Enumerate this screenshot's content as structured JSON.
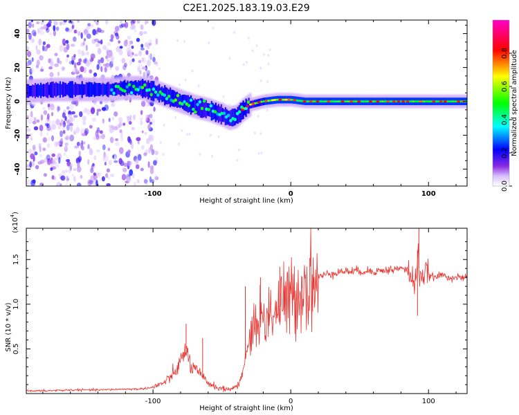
{
  "title": "C2E1.2025.183.19.03.E29",
  "chart_data": [
    {
      "type": "heatmap",
      "xlabel": "Height of straight line (km)",
      "ylabel": "Frequency (Hz)",
      "xlim": [
        -192,
        128
      ],
      "ylim": [
        -50,
        48
      ],
      "xticks": [
        -100,
        0,
        100
      ],
      "yticks": [
        -40,
        -20,
        0,
        20,
        40
      ],
      "colorbar": {
        "label": "Normalized spectral amplitude",
        "range": [
          0,
          1
        ],
        "ticks": [
          0.0,
          0.2,
          0.4,
          0.6,
          0.8
        ],
        "tick_labels": [
          "0.0",
          "0.2",
          "0.4",
          "0.6",
          "0.8"
        ],
        "colormap": [
          "#ffffff",
          "#7b00ff",
          "#0000ff",
          "#00ffff",
          "#00ff00",
          "#ffff00",
          "#ff0000",
          "#ff00ff"
        ]
      },
      "ridge_frequency": {
        "x": [
          -192,
          -170,
          -150,
          -130,
          -120,
          -110,
          -100,
          -90,
          -80,
          -70,
          -60,
          -50,
          -45,
          -40,
          -35,
          -30,
          -20,
          -10,
          0,
          10,
          30,
          60,
          90,
          100,
          128
        ],
        "y": [
          6,
          7,
          7,
          7,
          8,
          8,
          6,
          3,
          0,
          -3,
          -5,
          -8,
          -10,
          -9,
          -5,
          -2,
          0,
          1,
          1,
          0,
          0,
          0,
          0,
          0,
          0
        ]
      }
    },
    {
      "type": "line",
      "xlabel": "Height of straight line (km)",
      "ylabel": "SNR (10 * v/v)",
      "multiplier_label": "(x10",
      "multiplier_exponent": "4",
      "xlim": [
        -192,
        128
      ],
      "ylim": [
        0,
        1.85
      ],
      "xticks": [
        -100,
        0,
        100
      ],
      "yticks": [
        0.5,
        1.0,
        1.5
      ],
      "ytick_labels": [
        "0.5",
        "1.0",
        "1.5"
      ],
      "line_color": "#e8322e",
      "series": [
        {
          "x": [
            -192,
            -180,
            -160,
            -140,
            -120,
            -110,
            -100,
            -95,
            -90,
            -85,
            -80,
            -76,
            -72,
            -68,
            -64,
            -60,
            -55,
            -50,
            -45,
            -40,
            -36,
            -33,
            -30,
            -27,
            -24,
            -20,
            -15,
            -10,
            -5,
            0,
            5,
            10,
            15,
            20,
            25,
            30,
            40,
            50,
            60,
            70,
            80,
            85,
            88,
            90,
            92,
            93,
            95,
            100,
            105,
            110,
            115,
            120,
            128
          ],
          "y": [
            0.03,
            0.03,
            0.04,
            0.04,
            0.05,
            0.05,
            0.07,
            0.1,
            0.14,
            0.22,
            0.35,
            0.5,
            0.28,
            0.25,
            0.18,
            0.12,
            0.08,
            0.05,
            0.05,
            0.07,
            0.15,
            0.4,
            0.6,
            0.75,
            0.8,
            0.85,
            0.9,
            0.95,
            1.0,
            1.05,
            1.15,
            1.2,
            1.25,
            1.3,
            1.33,
            1.35,
            1.37,
            1.37,
            1.37,
            1.38,
            1.4,
            1.38,
            1.3,
            1.15,
            1.6,
            1.4,
            1.32,
            1.32,
            1.3,
            1.33,
            1.3,
            1.3,
            1.29
          ]
        }
      ]
    }
  ]
}
